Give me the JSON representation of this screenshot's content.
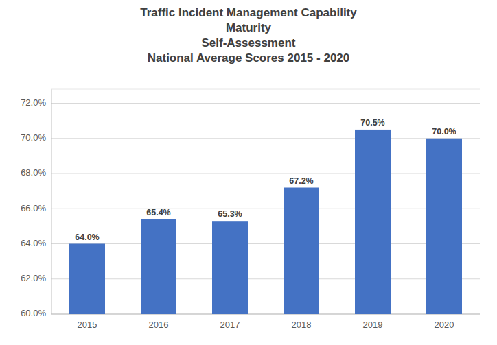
{
  "chart_data": {
    "type": "bar",
    "title": "Traffic Incident Management Capability\nMaturity\nSelf-Assessment\nNational Average Scores 2015 - 2020",
    "categories": [
      "2015",
      "2016",
      "2017",
      "2018",
      "2019",
      "2020"
    ],
    "values": [
      64.0,
      65.4,
      65.3,
      67.2,
      70.5,
      70.0
    ],
    "value_labels": [
      "64.0%",
      "65.4%",
      "65.3%",
      "67.2%",
      "70.5%",
      "70.0%"
    ],
    "data_labels": true,
    "color": "#4472C4",
    "ylim": [
      60.0,
      72.8
    ],
    "yticks": [
      {
        "value": 60.0,
        "label": "60.0%"
      },
      {
        "value": 62.0,
        "label": "62.0%"
      },
      {
        "value": 64.0,
        "label": "64.0%"
      },
      {
        "value": 66.0,
        "label": "66.0%"
      },
      {
        "value": 68.0,
        "label": "68.0%"
      },
      {
        "value": 70.0,
        "label": "70.0%"
      },
      {
        "value": 72.0,
        "label": "72.0%"
      }
    ],
    "grid": true
  }
}
